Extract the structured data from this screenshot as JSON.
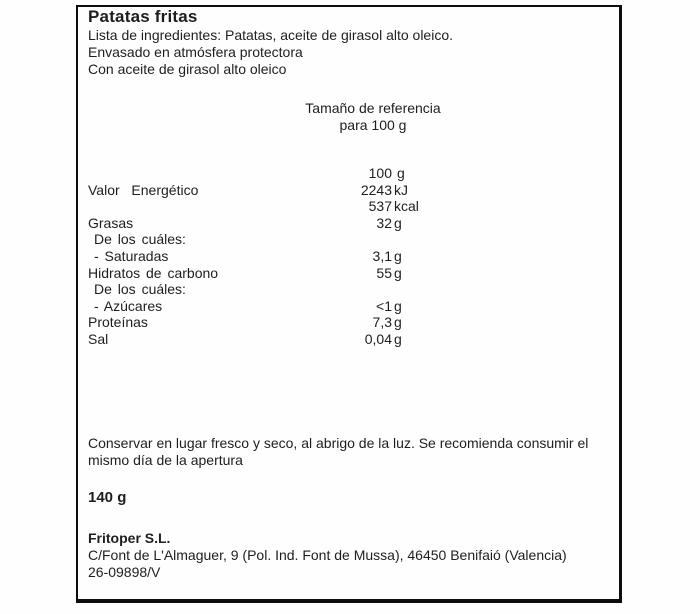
{
  "label": {
    "title": "Patatas fritas",
    "ingredients_line": "Lista de ingredientes: Patatas, aceite de girasol alto oleico.",
    "packaging_line": "Envasado en atmósfera protectora",
    "oil_line": "Con aceite de girasol alto oleico",
    "reference": {
      "line1": "Tamaño de referencia",
      "line2": "para 100 g"
    },
    "nutrition": {
      "rows": [
        {
          "label": "",
          "num": "100",
          "unit": "g"
        },
        {
          "label": "Valor  Energético",
          "num": "2243",
          "unit": "kJ"
        },
        {
          "label": "",
          "num": "537",
          "unit": "kcal"
        },
        {
          "label": "Grasas",
          "num": "32",
          "unit": "g"
        },
        {
          "label": "De los cuáles:",
          "num": "",
          "unit": ""
        },
        {
          "label": "- Saturadas",
          "num": "3,1",
          "unit": "g"
        },
        {
          "label": "Hidratos de carbono",
          "num": "55",
          "unit": "g"
        },
        {
          "label": "De los cuáles:",
          "num": "",
          "unit": ""
        },
        {
          "label": "- Azúcares",
          "num": "<1",
          "unit": "g"
        },
        {
          "label": "Proteínas",
          "num": "7,3",
          "unit": "g"
        },
        {
          "label": "Sal",
          "num": "0,04",
          "unit": "g"
        }
      ]
    },
    "storage_note": "Conservar en lugar fresco y seco, al abrigo de la luz. Se recomienda consumir el mismo día de la apertura",
    "net_weight": "140 g",
    "manufacturer": {
      "name": "Fritoper S.L.",
      "address": "C/Font de L'Almaguer, 9 (Pol. Ind. Font de Mussa), 46450 Benifaió (Valencia)",
      "registration": "26-09898/V"
    }
  }
}
